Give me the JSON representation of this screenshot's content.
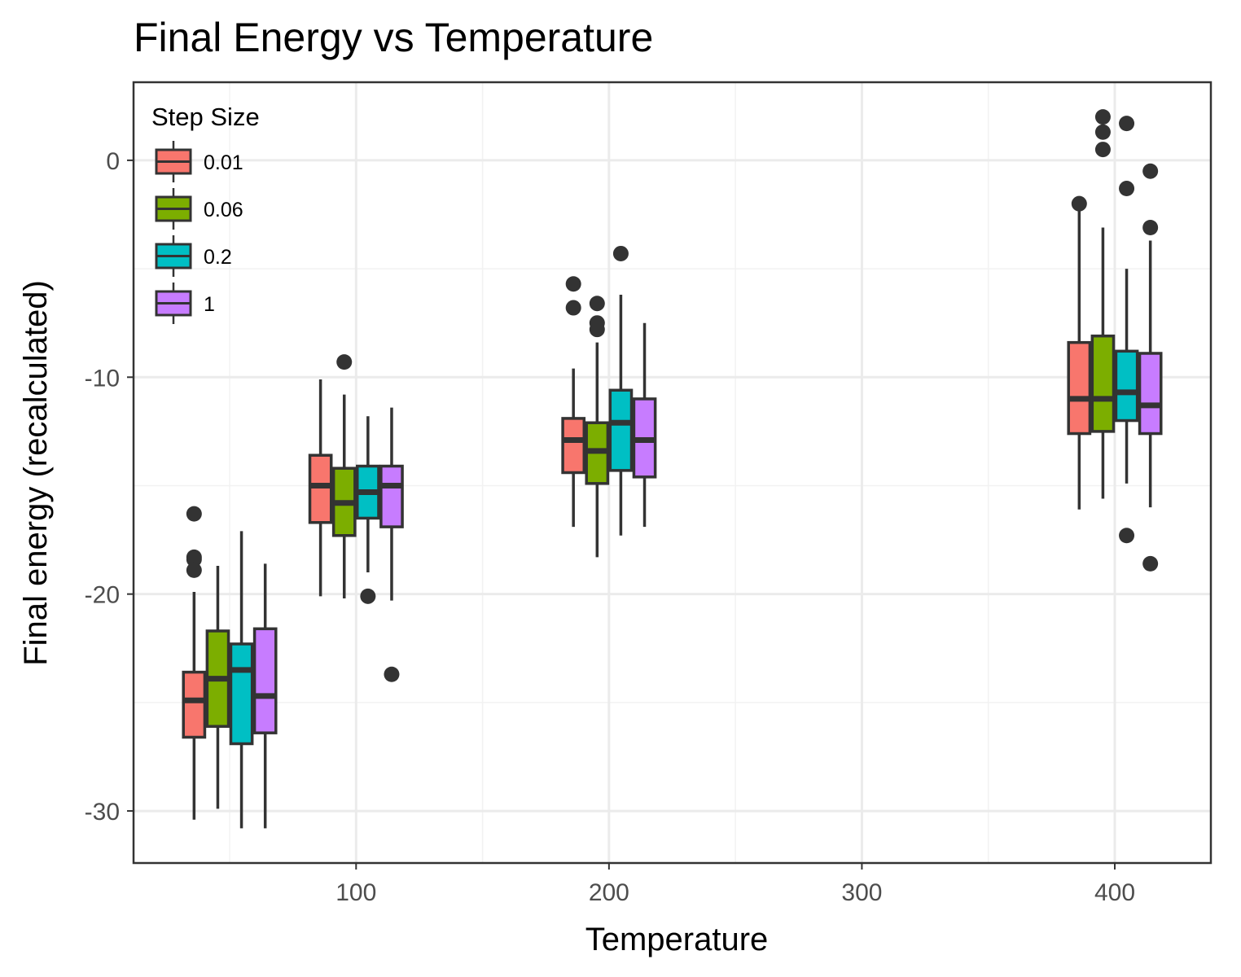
{
  "chart_data": {
    "type": "box",
    "title": "Final Energy vs Temperature",
    "xlabel": "Temperature",
    "ylabel": "Final energy (recalculated)",
    "xlim": [
      12,
      438
    ],
    "ylim": [
      -32.4,
      3.6
    ],
    "x_ticks": [
      100,
      200,
      300,
      400
    ],
    "y_ticks": [
      0,
      -10,
      -20,
      -30
    ],
    "grid": true,
    "legend": {
      "title": "Step Size",
      "position": "top-left"
    },
    "series": [
      {
        "name": "0.01",
        "color": "#F8766D"
      },
      {
        "name": "0.06",
        "color": "#7CAE00"
      },
      {
        "name": "0.2",
        "color": "#00BFC4"
      },
      {
        "name": "1",
        "color": "#C77CFF"
      }
    ],
    "groups": [
      {
        "temperature": 50,
        "boxes": [
          {
            "series": "0.01",
            "q1": -26.6,
            "median": -24.9,
            "q3": -23.6,
            "whisker_low": -30.4,
            "whisker_high": -19.9,
            "outliers": [
              -16.3,
              -18.3,
              -18.4,
              -18.9
            ]
          },
          {
            "series": "0.06",
            "q1": -26.1,
            "median": -23.9,
            "q3": -21.7,
            "whisker_low": -29.9,
            "whisker_high": -18.7,
            "outliers": []
          },
          {
            "series": "0.2",
            "q1": -26.9,
            "median": -23.5,
            "q3": -22.3,
            "whisker_low": -30.8,
            "whisker_high": -17.1,
            "outliers": []
          },
          {
            "series": "1",
            "q1": -26.4,
            "median": -24.7,
            "q3": -21.6,
            "whisker_low": -30.8,
            "whisker_high": -18.6,
            "outliers": []
          }
        ]
      },
      {
        "temperature": 100,
        "boxes": [
          {
            "series": "0.01",
            "q1": -16.7,
            "median": -15.0,
            "q3": -13.6,
            "whisker_low": -20.1,
            "whisker_high": -10.1,
            "outliers": []
          },
          {
            "series": "0.06",
            "q1": -17.3,
            "median": -15.8,
            "q3": -14.2,
            "whisker_low": -20.2,
            "whisker_high": -10.8,
            "outliers": [
              -9.3
            ]
          },
          {
            "series": "0.2",
            "q1": -16.5,
            "median": -15.3,
            "q3": -14.1,
            "whisker_low": -19.0,
            "whisker_high": -11.8,
            "outliers": [
              -20.1
            ]
          },
          {
            "series": "1",
            "q1": -16.9,
            "median": -15.0,
            "q3": -14.1,
            "whisker_low": -20.3,
            "whisker_high": -11.4,
            "outliers": [
              -23.7
            ]
          }
        ]
      },
      {
        "temperature": 200,
        "boxes": [
          {
            "series": "0.01",
            "q1": -14.4,
            "median": -12.9,
            "q3": -11.9,
            "whisker_low": -16.9,
            "whisker_high": -9.6,
            "outliers": [
              -5.7,
              -6.8
            ]
          },
          {
            "series": "0.06",
            "q1": -14.9,
            "median": -13.4,
            "q3": -12.1,
            "whisker_low": -18.3,
            "whisker_high": -8.4,
            "outliers": [
              -6.6,
              -7.5,
              -7.8
            ]
          },
          {
            "series": "0.2",
            "q1": -14.3,
            "median": -12.1,
            "q3": -10.6,
            "whisker_low": -17.3,
            "whisker_high": -6.2,
            "outliers": [
              -4.3
            ]
          },
          {
            "series": "1",
            "q1": -14.6,
            "median": -12.9,
            "q3": -11.0,
            "whisker_low": -16.9,
            "whisker_high": -7.5,
            "outliers": []
          }
        ]
      },
      {
        "temperature": 400,
        "boxes": [
          {
            "series": "0.01",
            "q1": -12.6,
            "median": -11.0,
            "q3": -8.4,
            "whisker_low": -16.1,
            "whisker_high": -2.0,
            "outliers": [
              -2.0
            ]
          },
          {
            "series": "0.06",
            "q1": -12.5,
            "median": -11.0,
            "q3": -8.1,
            "whisker_low": -15.6,
            "whisker_high": -3.1,
            "outliers": [
              2.0,
              1.3,
              0.5
            ]
          },
          {
            "series": "0.2",
            "q1": -12.0,
            "median": -10.7,
            "q3": -8.8,
            "whisker_low": -14.9,
            "whisker_high": -5.0,
            "outliers": [
              1.7,
              -1.3,
              -17.3
            ]
          },
          {
            "series": "1",
            "q1": -12.6,
            "median": -11.3,
            "q3": -8.9,
            "whisker_low": -16.0,
            "whisker_high": -3.7,
            "outliers": [
              -0.5,
              -3.1,
              -18.6
            ]
          }
        ]
      }
    ]
  }
}
